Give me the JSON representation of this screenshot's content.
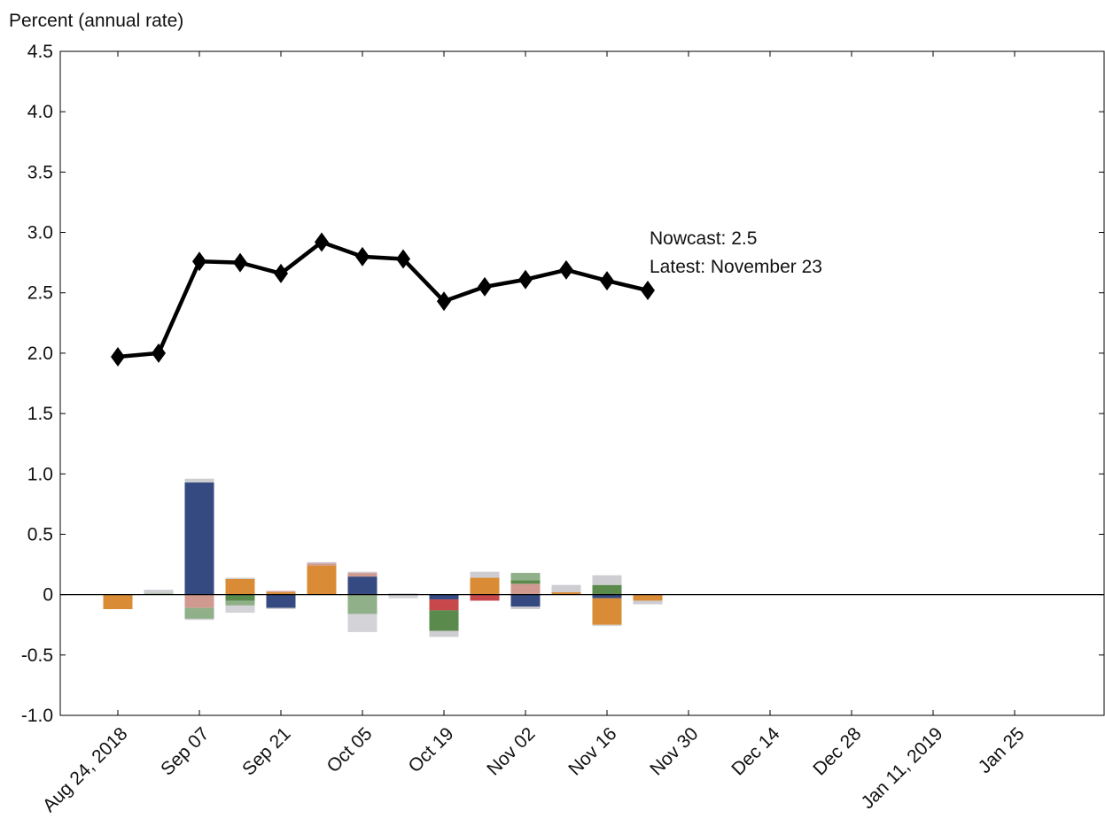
{
  "chart_data": {
    "type": "bar-line",
    "y_label": "Percent (annual rate)",
    "annotations": [
      "Nowcast:  2.5",
      "Latest: November 23"
    ],
    "categories": [
      "Aug 24, 2018",
      null,
      "Sep 07",
      null,
      "Sep 21",
      null,
      "Oct 05",
      null,
      "Oct 19",
      null,
      "Nov 02",
      null,
      "Nov 16",
      null,
      "Nov 30",
      null,
      "Dec 14",
      null,
      "Dec 28",
      null,
      "Jan 11, 2019",
      null,
      "Jan 25",
      null
    ],
    "ylim": [
      -1,
      4.5
    ],
    "yticks": [
      {
        "value": -1,
        "label": "-1.0"
      },
      -0.5,
      0,
      0.5,
      {
        "value": 1,
        "label": "1.0"
      },
      1.5,
      {
        "value": 2,
        "label": "2.0"
      },
      2.5,
      {
        "value": 3,
        "label": "3.0"
      },
      3.5,
      {
        "value": 4,
        "label": "4.0"
      },
      4.5
    ],
    "line": {
      "color": "#000000",
      "values": [
        1.97,
        2.0,
        2.76,
        2.75,
        2.66,
        2.92,
        2.8,
        2.78,
        2.43,
        2.55,
        2.61,
        2.69,
        2.6,
        2.52,
        null,
        null,
        null,
        null,
        null,
        null,
        null,
        null,
        null,
        null
      ]
    },
    "series": [
      {
        "color": "#354a80",
        "values": [
          0,
          0,
          0.93,
          0,
          -0.11,
          0,
          0.15,
          0,
          -0.04,
          0,
          -0.1,
          0,
          -0.03,
          0,
          null,
          null,
          null,
          null,
          null,
          null,
          null,
          null,
          null,
          null
        ]
      },
      {
        "color": "#d98c35",
        "values": [
          -0.12,
          0,
          0,
          0.13,
          0.02,
          0.24,
          0,
          0,
          0,
          0.14,
          0,
          0.02,
          -0.22,
          -0.05,
          null,
          null,
          null,
          null,
          null,
          null,
          null,
          null,
          null,
          null
        ]
      },
      {
        "color": "#d09a90",
        "values": [
          0,
          0,
          -0.11,
          0,
          0.01,
          0.02,
          0.03,
          0,
          0,
          0,
          0.09,
          0,
          0,
          0,
          null,
          null,
          null,
          null,
          null,
          null,
          null,
          null,
          null,
          null
        ]
      },
      {
        "color": "#c8474a",
        "values": [
          0,
          0,
          0,
          0,
          0,
          0,
          0,
          0,
          -0.09,
          -0.05,
          0,
          0,
          0,
          0,
          null,
          null,
          null,
          null,
          null,
          null,
          null,
          null,
          null,
          null
        ]
      },
      {
        "color": "#5a8a4c",
        "values": [
          0,
          0,
          0,
          -0.05,
          0,
          0,
          0,
          0,
          -0.17,
          0,
          0.03,
          0,
          0.08,
          0,
          null,
          null,
          null,
          null,
          null,
          null,
          null,
          null,
          null,
          null
        ]
      },
      {
        "color": "#8fb088",
        "values": [
          0,
          0.01,
          -0.09,
          -0.04,
          0,
          0,
          -0.16,
          0,
          0,
          0,
          0.06,
          0,
          0,
          0,
          null,
          null,
          null,
          null,
          null,
          null,
          null,
          null,
          null,
          null
        ]
      },
      {
        "color": "#cdcdd2",
        "values": [
          0,
          0.03,
          0.03,
          0.01,
          0,
          0.01,
          0.01,
          0.01,
          -0.05,
          0.05,
          -0.02,
          0.06,
          0.08,
          -0.03,
          null,
          null,
          null,
          null,
          null,
          null,
          null,
          null,
          null,
          null
        ]
      },
      {
        "color": "#d3d3d8",
        "values": [
          0,
          0,
          -0.01,
          -0.06,
          -0.01,
          0,
          -0.15,
          -0.03,
          0,
          0,
          0,
          0,
          -0.01,
          0,
          null,
          null,
          null,
          null,
          null,
          null,
          null,
          null,
          null,
          null
        ]
      }
    ]
  }
}
